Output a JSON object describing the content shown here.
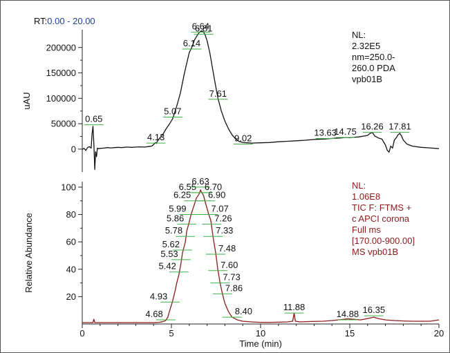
{
  "header": {
    "rt_prefix": "RT:",
    "rt_range": "0.00 - 20.00",
    "rt_color": "#1f3f9a"
  },
  "chart_data": [
    {
      "type": "line",
      "panel": "top",
      "ylabel": "uAU",
      "xlim": [
        0,
        20
      ],
      "ylim": [
        -45000,
        235000
      ],
      "yticks": [
        0,
        50000,
        100000,
        150000,
        200000
      ],
      "ytick_labels": [
        "0",
        "50000",
        "100000",
        "150000",
        "200000"
      ],
      "line_color": "#111111",
      "info_text": [
        "NL:",
        "2.32E5",
        "nm=250.0-",
        "260.0  PDA",
        "vpb01B"
      ],
      "info_color": "#111111",
      "peak_labels": [
        {
          "x": 0.65,
          "y": 48000,
          "label": "0.65"
        },
        {
          "x": 4.13,
          "y": 12000,
          "label": "4.13"
        },
        {
          "x": 5.07,
          "y": 63000,
          "label": "5.07"
        },
        {
          "x": 6.14,
          "y": 197000,
          "label": "6.14"
        },
        {
          "x": 6.64,
          "y": 230000,
          "label": "6.64"
        },
        {
          "x": 6.81,
          "y": 226000,
          "label": "6.81"
        },
        {
          "x": 7.61,
          "y": 98000,
          "label": "7.61"
        },
        {
          "x": 9.02,
          "y": 10000,
          "label": "9.02"
        },
        {
          "x": 13.63,
          "y": 21000,
          "label": "13.63"
        },
        {
          "x": 14.75,
          "y": 23000,
          "label": "14.75"
        },
        {
          "x": 16.26,
          "y": 33000,
          "label": "16.26"
        },
        {
          "x": 17.81,
          "y": 33000,
          "label": "17.81"
        }
      ],
      "series": [
        {
          "x": [
            0.0,
            0.1,
            0.2,
            0.3,
            0.4,
            0.5,
            0.55,
            0.6,
            0.65,
            0.7,
            0.75,
            0.8,
            0.85,
            0.9,
            1.0,
            1.2,
            1.4,
            1.6,
            1.8,
            2.0,
            2.2,
            2.5,
            2.8,
            3.0,
            3.2,
            3.5,
            3.7,
            3.9,
            4.0,
            4.1,
            4.15,
            4.2,
            4.3,
            4.5,
            4.7,
            4.9,
            5.07,
            5.3,
            5.5,
            5.7,
            5.9,
            6.0,
            6.14,
            6.3,
            6.45,
            6.55,
            6.64,
            6.75,
            6.81,
            6.9,
            7.0,
            7.15,
            7.3,
            7.45,
            7.61,
            7.8,
            8.0,
            8.2,
            8.4,
            8.6,
            8.8,
            9.02,
            9.5,
            10.0,
            10.5,
            11.0,
            11.5,
            12.0,
            12.5,
            13.0,
            13.63,
            14.0,
            14.5,
            14.75,
            15.0,
            15.5,
            16.0,
            16.1,
            16.26,
            16.4,
            16.6,
            16.8,
            17.0,
            17.1,
            17.2,
            17.3,
            17.4,
            17.5,
            17.6,
            17.7,
            17.81,
            17.9,
            18.0,
            18.2,
            18.5,
            19.0,
            19.5,
            20.0
          ],
          "y": [
            -500,
            1500,
            -2500,
            3000,
            5000,
            2000,
            30000,
            45000,
            10000,
            -40000,
            -5000,
            -15000,
            2000,
            1000,
            1500,
            2000,
            3000,
            2500,
            3000,
            3500,
            3000,
            4000,
            3500,
            4000,
            4500,
            4000,
            5000,
            6000,
            9000,
            13000,
            11000,
            15000,
            20000,
            28000,
            40000,
            50000,
            60000,
            85000,
            110000,
            145000,
            175000,
            190000,
            200000,
            215000,
            224000,
            229000,
            232000,
            232000,
            230000,
            224000,
            213000,
            190000,
            160000,
            130000,
            100000,
            75000,
            55000,
            40000,
            28000,
            20000,
            15000,
            13000,
            12000,
            12500,
            13000,
            14500,
            15500,
            16500,
            17500,
            19000,
            20000,
            21000,
            22000,
            23000,
            22500,
            24000,
            27000,
            30000,
            33000,
            26000,
            22000,
            20000,
            8000,
            -2000,
            -6000,
            6000,
            2000,
            18000,
            22000,
            28000,
            31000,
            26000,
            18000,
            10000,
            6000,
            3500,
            2500,
            1000
          ]
        }
      ]
    },
    {
      "type": "line",
      "panel": "bottom",
      "ylabel": "Relative Abundance",
      "xlabel": "Time (min)",
      "xlim": [
        0,
        20
      ],
      "ylim": [
        0,
        104
      ],
      "xticks": [
        0,
        5,
        10,
        15,
        20
      ],
      "xtick_labels": [
        "0",
        "5",
        "10",
        "15",
        "20"
      ],
      "yticks": [
        20,
        40,
        60,
        80,
        100
      ],
      "ytick_labels": [
        "20",
        "40",
        "60",
        "80",
        "100"
      ],
      "line_color": "#8b1a1a",
      "info_text": [
        "NL:",
        "1.06E8",
        "TIC F: FTMS +",
        "c APCI corona",
        "Full ms",
        "[170.00-900.00]",
        "MS vpb01B"
      ],
      "info_color": "#8b1a1a",
      "peak_labels": [
        {
          "x": 4.68,
          "y": 3,
          "label": "4.68",
          "align": "end"
        },
        {
          "x": 4.93,
          "y": 16,
          "label": "4.93",
          "align": "end"
        },
        {
          "x": 5.42,
          "y": 38,
          "label": "5.42",
          "align": "end"
        },
        {
          "x": 5.53,
          "y": 47,
          "label": "5.53",
          "align": "end"
        },
        {
          "x": 5.62,
          "y": 54,
          "label": "5.62",
          "align": "end"
        },
        {
          "x": 5.78,
          "y": 64,
          "label": "5.78",
          "align": "end"
        },
        {
          "x": 5.86,
          "y": 73,
          "label": "5.86",
          "align": "end"
        },
        {
          "x": 5.99,
          "y": 80,
          "label": "5.99",
          "align": "end"
        },
        {
          "x": 6.25,
          "y": 90,
          "label": "6.25",
          "align": "end"
        },
        {
          "x": 6.55,
          "y": 96,
          "label": "6.55",
          "align": "end"
        },
        {
          "x": 6.63,
          "y": 100,
          "label": "6.63",
          "align": "middle"
        },
        {
          "x": 6.7,
          "y": 96,
          "label": "6.70",
          "align": "start"
        },
        {
          "x": 6.9,
          "y": 90,
          "label": "6.90",
          "align": "start"
        },
        {
          "x": 7.07,
          "y": 80,
          "label": "7.07",
          "align": "start"
        },
        {
          "x": 7.26,
          "y": 73,
          "label": "7.26",
          "align": "start"
        },
        {
          "x": 7.33,
          "y": 64,
          "label": "7.33",
          "align": "start"
        },
        {
          "x": 7.48,
          "y": 51,
          "label": "7.48",
          "align": "start"
        },
        {
          "x": 7.6,
          "y": 39,
          "label": "7.60",
          "align": "start"
        },
        {
          "x": 7.73,
          "y": 30,
          "label": "7.73",
          "align": "start"
        },
        {
          "x": 7.86,
          "y": 22,
          "label": "7.86",
          "align": "start"
        },
        {
          "x": 8.4,
          "y": 5,
          "label": "8.40",
          "align": "start"
        },
        {
          "x": 11.88,
          "y": 8,
          "label": "11.88",
          "align": "middle"
        },
        {
          "x": 14.88,
          "y": 3,
          "label": "14.88",
          "align": "middle"
        },
        {
          "x": 16.35,
          "y": 6,
          "label": "16.35",
          "align": "middle"
        }
      ],
      "series": [
        {
          "x": [
            0.0,
            0.3,
            0.6,
            0.65,
            0.7,
            1.0,
            1.5,
            2.0,
            2.5,
            3.0,
            3.5,
            4.0,
            4.3,
            4.5,
            4.68,
            4.8,
            4.93,
            5.05,
            5.2,
            5.3,
            5.42,
            5.53,
            5.62,
            5.78,
            5.86,
            5.99,
            6.1,
            6.25,
            6.4,
            6.55,
            6.63,
            6.7,
            6.8,
            6.9,
            7.07,
            7.2,
            7.26,
            7.33,
            7.48,
            7.6,
            7.73,
            7.86,
            8.0,
            8.2,
            8.4,
            8.7,
            9.0,
            9.5,
            10.0,
            10.5,
            11.0,
            11.5,
            11.8,
            11.88,
            11.95,
            12.2,
            12.8,
            13.5,
            14.0,
            14.5,
            14.88,
            15.2,
            15.6,
            16.0,
            16.35,
            16.6,
            17.0,
            17.5,
            18.0,
            18.5,
            19.0,
            19.5,
            20.0
          ],
          "y": [
            1,
            1,
            1,
            3.5,
            1,
            1,
            1,
            1,
            1,
            1,
            1,
            1,
            1.2,
            1.6,
            2.5,
            5,
            11,
            16,
            24,
            30,
            36,
            44,
            52,
            60,
            68,
            74,
            80,
            86,
            92,
            95,
            98,
            96,
            94,
            89,
            81,
            76,
            71,
            64,
            52,
            40,
            30,
            22,
            15,
            9,
            5,
            3,
            2,
            1.5,
            1.2,
            1.2,
            1.3,
            1.5,
            2,
            8,
            2,
            1.5,
            1.8,
            2,
            2.5,
            3.2,
            3.8,
            3.5,
            3,
            4,
            5,
            4,
            3,
            2.5,
            2.2,
            2,
            2,
            2,
            3
          ]
        }
      ]
    }
  ]
}
